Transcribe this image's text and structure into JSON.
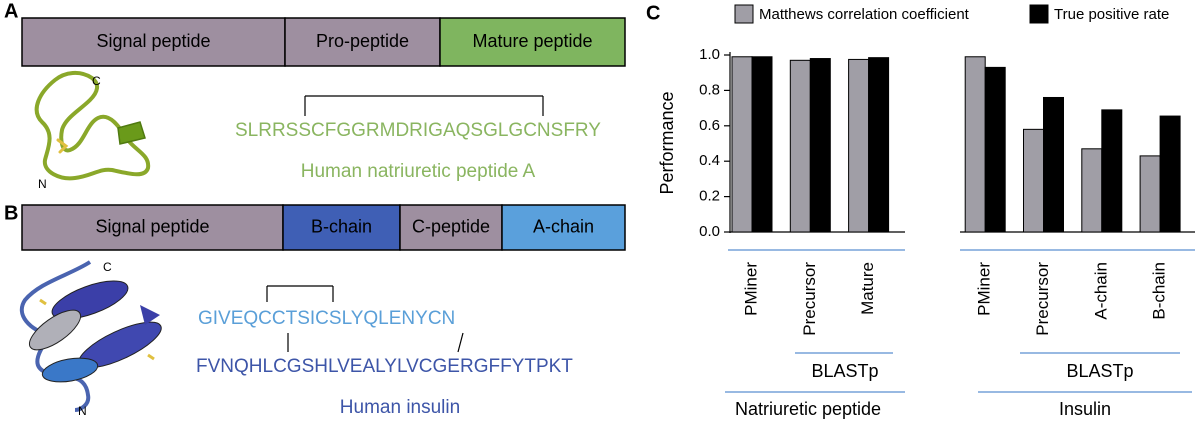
{
  "panel_labels": [
    "A",
    "B",
    "C"
  ],
  "panel_a": {
    "segments": [
      {
        "label": "Signal peptide",
        "color": "#9e8fa0"
      },
      {
        "label": "Pro-peptide",
        "color": "#9e8fa0"
      },
      {
        "label": "Mature peptide",
        "color": "#7fb55f"
      }
    ],
    "terminal_c": "C",
    "terminal_n": "N",
    "sequence": "SLRRSSCFGGRMDRIGAQSGLGCNSFRY",
    "name": "Human natriuretic peptide A"
  },
  "panel_b": {
    "segments": [
      {
        "label": "Signal peptide",
        "color": "#9e8fa0"
      },
      {
        "label": "B-chain",
        "color": "#3f5fb5"
      },
      {
        "label": "C-peptide",
        "color": "#9e8fa0"
      },
      {
        "label": "A-chain",
        "color": "#5aa0dc"
      }
    ],
    "terminal_c": "C",
    "terminal_n": "N",
    "sequence_a": "GIVEQCCTSICSLYQLENYCN",
    "sequence_b": "FVNQHLCGSHLVEALYLVCGERGFFYTPKT",
    "name": "Human insulin"
  },
  "chart_data": {
    "type": "bar",
    "y_label": "Performance",
    "categories": [
      "PMiner",
      "Precursor",
      "Mature",
      null,
      "PMiner",
      "Precursor",
      "A-chain",
      "B-chain"
    ],
    "series": [
      {
        "name": "Matthews correlation coefficient",
        "color": "#a09ea6",
        "values": [
          0.99,
          0.97,
          0.975,
          null,
          0.99,
          0.58,
          0.47,
          0.43
        ]
      },
      {
        "name": "True positive rate",
        "color": "#000000",
        "values": [
          0.99,
          0.98,
          0.985,
          null,
          0.93,
          0.76,
          0.69,
          0.655
        ]
      }
    ],
    "ylim": [
      0,
      1
    ],
    "yticks": [
      {
        "value": 0,
        "label": "0.0"
      },
      {
        "value": 0.2,
        "label": "0.2"
      },
      {
        "value": 0.4,
        "label": "0.4"
      },
      {
        "value": 0.6,
        "label": "0.6"
      },
      {
        "value": 0.8,
        "label": "0.8"
      },
      {
        "value": 1,
        "label": "1.0"
      }
    ],
    "annotations": [
      "BLASTp",
      "Natriuretic peptide",
      "BLASTp",
      "Insulin"
    ]
  }
}
